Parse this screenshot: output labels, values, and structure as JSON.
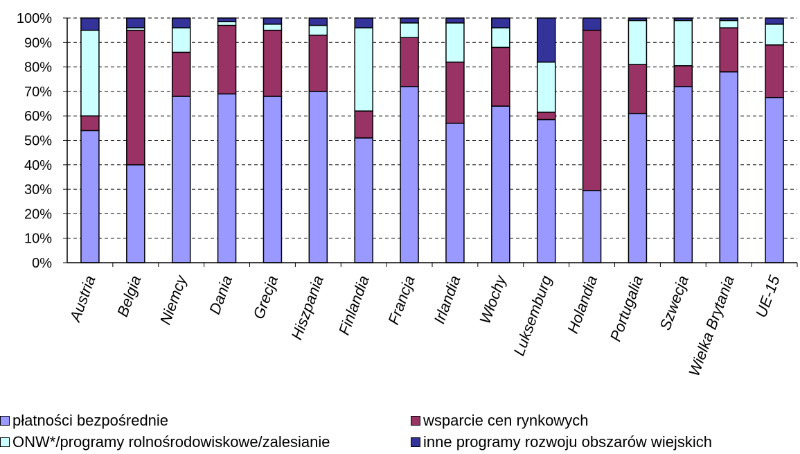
{
  "chart_data": {
    "type": "bar",
    "stacked": true,
    "percent_stacked": true,
    "categories": [
      "Austria",
      "Belgia",
      "Niemcy",
      "Dania",
      "Grecja",
      "Hiszpania",
      "Finlandia",
      "Francja",
      "Irlandia",
      "Włochy",
      "Luksemburg",
      "Holandia",
      "Portugalia",
      "Szwecja",
      "Wielka Brytania",
      "UE-15"
    ],
    "series": [
      {
        "name": "płatności bezpośrednie",
        "color": "#9999ff",
        "values": [
          54,
          40,
          68,
          69,
          68,
          70,
          51,
          72,
          57,
          64,
          58.5,
          29.5,
          61,
          72,
          78,
          67.5
        ]
      },
      {
        "name": "wsparcie cen rynkowych",
        "color": "#993366",
        "values": [
          6,
          55,
          18,
          28,
          27,
          23,
          11,
          20,
          25,
          24,
          3,
          65.5,
          20,
          8.5,
          18,
          21.5
        ]
      },
      {
        "name": "ONW*/programy rolnośrodowiskowe/zalesianie",
        "color": "#ccffff",
        "values": [
          35,
          1,
          10,
          1.5,
          2.5,
          4,
          34,
          6,
          16,
          8,
          20.5,
          0,
          18,
          18.5,
          3,
          8.5
        ]
      },
      {
        "name": "inne programy rozwoju obszarów wiejskich",
        "color": "#333399",
        "values": [
          5,
          4,
          4,
          1.5,
          2.5,
          3,
          4,
          2,
          2,
          4,
          18,
          5,
          1,
          1,
          1,
          2.5
        ]
      }
    ],
    "ylim": [
      0,
      100
    ],
    "yticks": [
      "0%",
      "10%",
      "20%",
      "30%",
      "40%",
      "50%",
      "60%",
      "70%",
      "80%",
      "90%",
      "100%"
    ],
    "grid": "horizontal dashed",
    "legend_position": "bottom"
  }
}
